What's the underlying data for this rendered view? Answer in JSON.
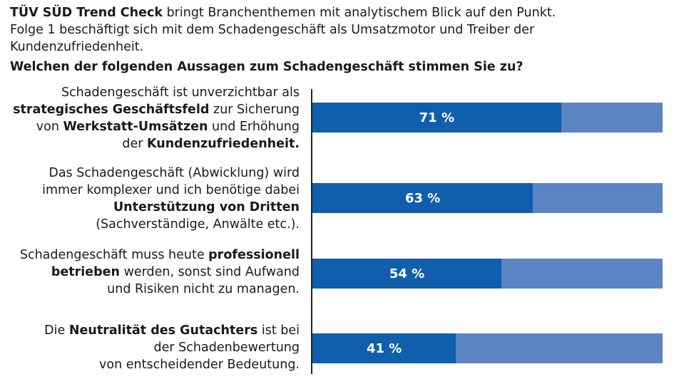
{
  "intro": {
    "brand": "TÜV SÜD Trend Check",
    "text1": " bringt Branchenthemen mit analytischem Blick auf den Punkt.",
    "text2": "Folge 1 beschäftigt sich mit dem Schadengeschäft als Umsatzmotor und Treiber der Kundenzufriedenheit."
  },
  "question": "Welchen der folgenden Aussagen zum Schadengeschäft stimmen Sie zu?",
  "colors": {
    "agree": "#0f5fac",
    "rest": "#5b84c4"
  },
  "chart_data": {
    "type": "bar",
    "orientation": "horizontal",
    "stacked": true,
    "xlim": [
      0,
      100
    ],
    "unit": "%",
    "categories": [
      [
        [
          {
            "t": "Schadengeschäft ist unverzichtbar als",
            "b": false
          }
        ],
        [
          {
            "t": "strategisches Geschäftsfeld",
            "b": true
          },
          {
            "t": " zur Sicherung",
            "b": false
          }
        ],
        [
          {
            "t": "von ",
            "b": false
          },
          {
            "t": "Werkstatt-Umsätzen",
            "b": true
          },
          {
            "t": " und Erhöhung",
            "b": false
          }
        ],
        [
          {
            "t": "der ",
            "b": false
          },
          {
            "t": "Kundenzufriedenheit.",
            "b": true
          }
        ]
      ],
      [
        [
          {
            "t": "Das Schadengeschäft (Abwicklung) wird",
            "b": false
          }
        ],
        [
          {
            "t": "immer komplexer und ich benötige dabei",
            "b": false
          }
        ],
        [
          {
            "t": "Unterstützung von Dritten",
            "b": true
          }
        ],
        [
          {
            "t": "(Sachverständige, Anwälte etc.).",
            "b": false
          }
        ]
      ],
      [
        [
          {
            "t": "Schadengeschäft muss heute ",
            "b": false
          },
          {
            "t": "professionell",
            "b": true
          }
        ],
        [
          {
            "t": "betrieben",
            "b": true
          },
          {
            "t": " werden, sonst sind Aufwand",
            "b": false
          }
        ],
        [
          {
            "t": "und Risiken nicht zu managen.",
            "b": false
          }
        ]
      ],
      [
        [
          {
            "t": "Die ",
            "b": false
          },
          {
            "t": "Neutralität des Gutachters",
            "b": true
          },
          {
            "t": " ist bei",
            "b": false
          }
        ],
        [
          {
            "t": "der Schadenbewertung",
            "b": false
          }
        ],
        [
          {
            "t": "von entscheidender Bedeutung.",
            "b": false
          }
        ]
      ]
    ],
    "values": [
      71,
      63,
      54,
      41
    ],
    "data_labels": [
      "71 %",
      "63 %",
      "54 %",
      "41 %"
    ]
  }
}
